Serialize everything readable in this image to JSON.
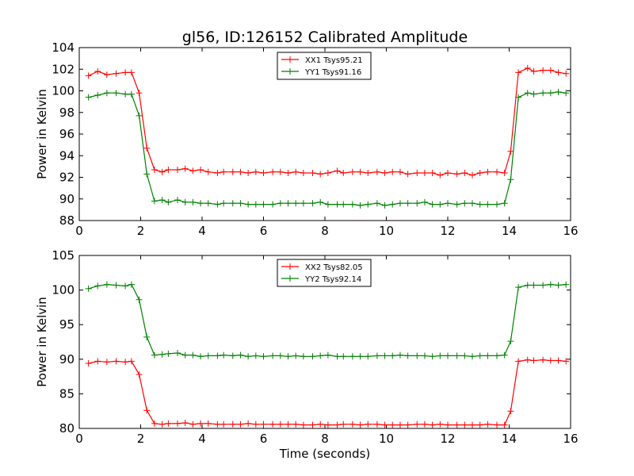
{
  "title": "gl56, ID:126152 Calibrated Amplitude",
  "colors": {
    "XX": "#ff0000",
    "YY": "#008000"
  },
  "chart_data": [
    {
      "type": "line",
      "title": "gl56, ID:126152 Calibrated Amplitude",
      "xlabel": "",
      "ylabel": "Power in Kelvin",
      "xlim": [
        0,
        16
      ],
      "ylim": [
        88,
        104
      ],
      "xticks": [
        "0",
        "2",
        "4",
        "6",
        "8",
        "10",
        "12",
        "14",
        "16"
      ],
      "yticks": [
        "88",
        "90",
        "92",
        "94",
        "96",
        "98",
        "100",
        "102",
        "104"
      ],
      "grid": false,
      "legend_position": "top-center",
      "x": [
        0.3,
        0.6,
        0.9,
        1.2,
        1.5,
        1.7,
        1.95,
        2.2,
        2.45,
        2.7,
        2.9,
        3.2,
        3.45,
        3.7,
        3.95,
        4.2,
        4.5,
        4.7,
        5.0,
        5.25,
        5.5,
        5.75,
        6.0,
        6.3,
        6.55,
        6.8,
        7.05,
        7.3,
        7.6,
        7.85,
        8.1,
        8.4,
        8.6,
        8.9,
        9.15,
        9.4,
        9.7,
        9.95,
        10.2,
        10.45,
        10.7,
        11.0,
        11.25,
        11.5,
        11.75,
        12.0,
        12.3,
        12.55,
        12.8,
        13.05,
        13.3,
        13.6,
        13.85,
        14.05,
        14.3,
        14.6,
        14.8,
        15.1,
        15.35,
        15.6,
        15.85
      ],
      "series": [
        {
          "name": "XX1 Tsys95.21",
          "color": "#ff0000",
          "values": [
            101.4,
            101.8,
            101.5,
            101.6,
            101.7,
            101.7,
            99.8,
            94.7,
            92.7,
            92.5,
            92.7,
            92.7,
            92.8,
            92.6,
            92.7,
            92.5,
            92.4,
            92.5,
            92.5,
            92.5,
            92.4,
            92.5,
            92.4,
            92.5,
            92.5,
            92.4,
            92.5,
            92.4,
            92.4,
            92.3,
            92.4,
            92.6,
            92.4,
            92.5,
            92.5,
            92.4,
            92.5,
            92.4,
            92.5,
            92.5,
            92.3,
            92.4,
            92.4,
            92.4,
            92.2,
            92.4,
            92.3,
            92.4,
            92.2,
            92.4,
            92.5,
            92.5,
            92.4,
            94.4,
            101.7,
            102.1,
            101.8,
            101.9,
            101.9,
            101.7,
            101.6
          ]
        },
        {
          "name": "YY1 Tsys91.16",
          "color": "#008000",
          "values": [
            99.4,
            99.6,
            99.8,
            99.8,
            99.7,
            99.7,
            97.7,
            92.3,
            89.8,
            89.9,
            89.7,
            89.9,
            89.7,
            89.7,
            89.6,
            89.6,
            89.5,
            89.6,
            89.6,
            89.6,
            89.5,
            89.5,
            89.5,
            89.5,
            89.6,
            89.6,
            89.6,
            89.6,
            89.6,
            89.7,
            89.5,
            89.5,
            89.5,
            89.5,
            89.4,
            89.5,
            89.6,
            89.4,
            89.5,
            89.6,
            89.6,
            89.6,
            89.7,
            89.5,
            89.5,
            89.6,
            89.5,
            89.6,
            89.6,
            89.5,
            89.5,
            89.5,
            89.6,
            91.8,
            99.4,
            99.8,
            99.7,
            99.8,
            99.8,
            99.9,
            99.8
          ]
        }
      ]
    },
    {
      "type": "line",
      "title": "",
      "xlabel": "Time (seconds)",
      "ylabel": "Power in Kelvin",
      "xlim": [
        0,
        16
      ],
      "ylim": [
        80,
        105
      ],
      "xticks": [
        "0",
        "2",
        "4",
        "6",
        "8",
        "10",
        "12",
        "14",
        "16"
      ],
      "yticks": [
        "80",
        "85",
        "90",
        "95",
        "100",
        "105"
      ],
      "grid": false,
      "legend_position": "top-center",
      "x": [
        0.3,
        0.6,
        0.9,
        1.2,
        1.5,
        1.7,
        1.95,
        2.2,
        2.45,
        2.7,
        2.9,
        3.2,
        3.45,
        3.7,
        3.95,
        4.2,
        4.5,
        4.7,
        5.0,
        5.25,
        5.5,
        5.75,
        6.0,
        6.3,
        6.55,
        6.8,
        7.05,
        7.3,
        7.6,
        7.85,
        8.1,
        8.4,
        8.6,
        8.9,
        9.15,
        9.4,
        9.7,
        9.95,
        10.2,
        10.45,
        10.7,
        11.0,
        11.25,
        11.5,
        11.75,
        12.0,
        12.3,
        12.55,
        12.8,
        13.05,
        13.3,
        13.6,
        13.85,
        14.05,
        14.3,
        14.6,
        14.8,
        15.1,
        15.35,
        15.6,
        15.85
      ],
      "series": [
        {
          "name": "XX2 Tsys82.05",
          "color": "#ff0000",
          "values": [
            89.4,
            89.7,
            89.6,
            89.7,
            89.6,
            89.7,
            87.8,
            82.6,
            80.7,
            80.6,
            80.7,
            80.7,
            80.8,
            80.6,
            80.7,
            80.7,
            80.6,
            80.6,
            80.6,
            80.6,
            80.7,
            80.6,
            80.6,
            80.6,
            80.6,
            80.6,
            80.6,
            80.5,
            80.5,
            80.6,
            80.5,
            80.5,
            80.6,
            80.6,
            80.5,
            80.6,
            80.6,
            80.5,
            80.5,
            80.5,
            80.5,
            80.6,
            80.6,
            80.5,
            80.6,
            80.5,
            80.5,
            80.5,
            80.5,
            80.5,
            80.6,
            80.5,
            80.5,
            82.5,
            89.7,
            89.9,
            89.8,
            89.9,
            89.8,
            89.8,
            89.7
          ]
        },
        {
          "name": "YY2 Tsys92.14",
          "color": "#008000",
          "values": [
            100.2,
            100.6,
            100.8,
            100.7,
            100.6,
            100.8,
            98.6,
            93.2,
            90.6,
            90.7,
            90.8,
            90.9,
            90.6,
            90.6,
            90.4,
            90.5,
            90.5,
            90.6,
            90.5,
            90.6,
            90.4,
            90.5,
            90.4,
            90.5,
            90.5,
            90.4,
            90.5,
            90.4,
            90.4,
            90.5,
            90.6,
            90.4,
            90.4,
            90.4,
            90.4,
            90.4,
            90.5,
            90.5,
            90.5,
            90.6,
            90.5,
            90.5,
            90.5,
            90.4,
            90.5,
            90.5,
            90.5,
            90.5,
            90.4,
            90.5,
            90.5,
            90.5,
            90.6,
            92.6,
            100.4,
            100.7,
            100.7,
            100.7,
            100.8,
            100.7,
            100.8
          ]
        }
      ]
    }
  ]
}
